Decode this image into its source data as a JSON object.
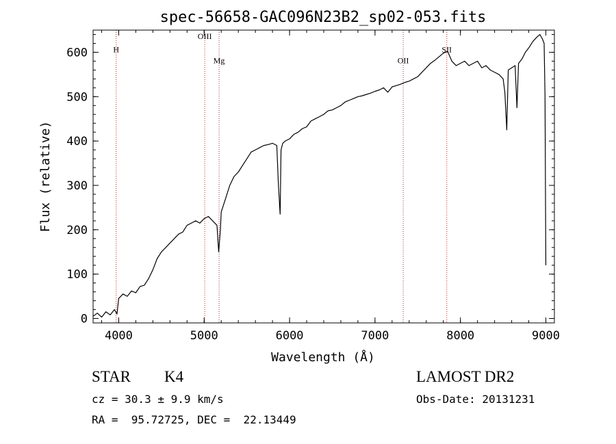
{
  "chart_data": {
    "type": "line",
    "title": "spec-56658-GAC096N23B2_sp02-053.fits",
    "xlabel": "Wavelength (Å)",
    "ylabel": "Flux (relative)",
    "xlim": [
      3700,
      9100
    ],
    "ylim": [
      -10,
      650
    ],
    "xticks": [
      4000,
      5000,
      6000,
      7000,
      8000,
      9000
    ],
    "yticks": [
      0,
      100,
      200,
      300,
      400,
      500,
      600
    ],
    "series": [
      {
        "x": [
          3700,
          3750,
          3800,
          3850,
          3900,
          3950,
          3980,
          4000,
          4050,
          4100,
          4150,
          4200,
          4250,
          4300,
          4350,
          4400,
          4450,
          4500,
          4550,
          4600,
          4650,
          4700,
          4750,
          4800,
          4850,
          4900,
          4950,
          5000,
          5050,
          5100,
          5150,
          5170,
          5190,
          5200,
          5250,
          5300,
          5350,
          5400,
          5450,
          5500,
          5550,
          5600,
          5650,
          5700,
          5750,
          5800,
          5850,
          5870,
          5890,
          5900,
          5920,
          5950,
          6000,
          6050,
          6100,
          6150,
          6200,
          6250,
          6300,
          6350,
          6400,
          6450,
          6500,
          6550,
          6600,
          6650,
          6700,
          6750,
          6800,
          6850,
          6900,
          6950,
          7000,
          7050,
          7100,
          7150,
          7200,
          7250,
          7300,
          7350,
          7400,
          7450,
          7500,
          7550,
          7600,
          7650,
          7700,
          7750,
          7800,
          7850,
          7900,
          7950,
          8000,
          8050,
          8100,
          8150,
          8200,
          8250,
          8300,
          8350,
          8400,
          8450,
          8500,
          8520,
          8542,
          8560,
          8600,
          8640,
          8662,
          8680,
          8720,
          8760,
          8800,
          8850,
          8900,
          8930,
          8960,
          8980,
          8990,
          8995,
          9000
        ],
        "values": [
          5,
          12,
          3,
          15,
          8,
          20,
          10,
          45,
          55,
          50,
          62,
          58,
          72,
          75,
          90,
          110,
          135,
          150,
          160,
          170,
          180,
          190,
          195,
          210,
          215,
          220,
          215,
          225,
          230,
          220,
          210,
          150,
          200,
          240,
          270,
          300,
          320,
          330,
          345,
          360,
          375,
          380,
          385,
          390,
          392,
          395,
          390,
          300,
          235,
          380,
          395,
          400,
          405,
          415,
          420,
          428,
          432,
          445,
          450,
          455,
          460,
          468,
          470,
          475,
          480,
          488,
          492,
          496,
          500,
          502,
          505,
          508,
          512,
          515,
          520,
          510,
          522,
          525,
          528,
          532,
          535,
          540,
          545,
          555,
          565,
          575,
          582,
          590,
          598,
          602,
          580,
          570,
          575,
          580,
          570,
          575,
          580,
          565,
          570,
          560,
          555,
          550,
          540,
          510,
          425,
          560,
          565,
          570,
          475,
          575,
          585,
          600,
          610,
          625,
          635,
          640,
          630,
          620,
          500,
          300,
          120
        ]
      }
    ],
    "lines": [
      {
        "x": 3970,
        "label": "H"
      },
      {
        "x": 5007,
        "label": "OIII"
      },
      {
        "x": 5175,
        "label": "Mg"
      },
      {
        "x": 7330,
        "label": "OII"
      },
      {
        "x": 7840,
        "label": "SII"
      }
    ],
    "line_label_y": [
      600,
      630,
      575,
      575,
      600
    ]
  },
  "info": {
    "class_label": "STAR",
    "subclass_label": "K4",
    "survey": "LAMOST DR2",
    "cz": "cz = 30.3 ± 9.9 km/s",
    "obs_date": "Obs-Date: 20131231",
    "coords": "RA =  95.72725, DEC =  22.13449"
  },
  "colors": {
    "spectrum": "#000000",
    "lines": "#b02020",
    "axes": "#000000"
  }
}
